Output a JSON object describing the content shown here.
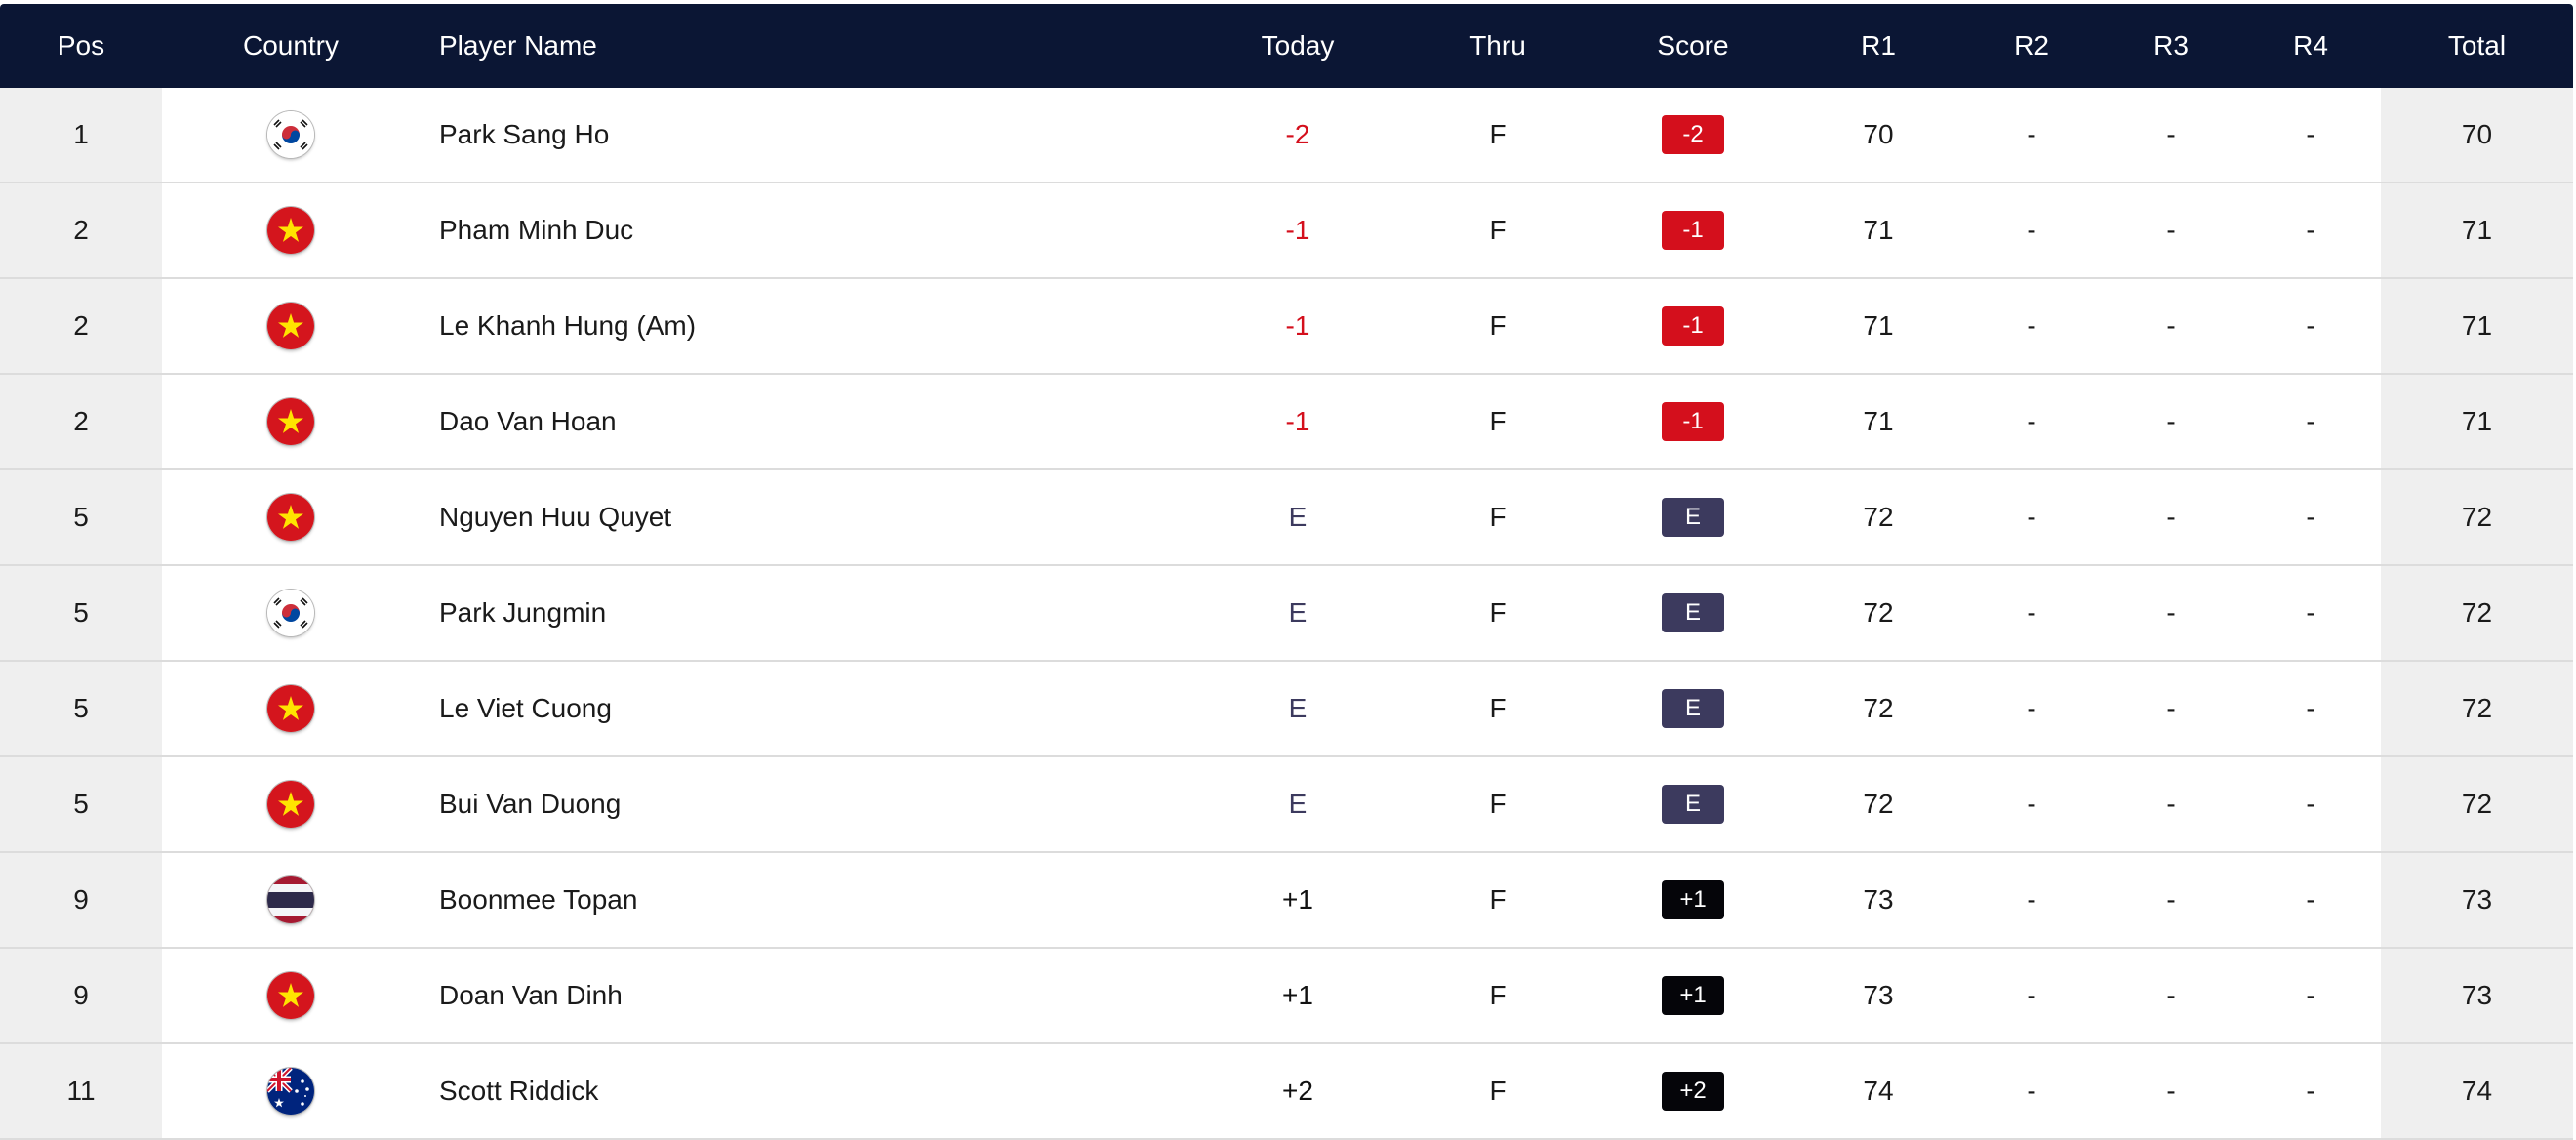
{
  "colors": {
    "header_bg": "#0b1634",
    "under_par": "#d40f1c",
    "even_par": "#3c3a5e",
    "over_par": "#050509",
    "stripe": "#efefef"
  },
  "header": {
    "pos": "Pos",
    "country": "Country",
    "name": "Player Name",
    "today": "Today",
    "thru": "Thru",
    "score": "Score",
    "r1": "R1",
    "r2": "R2",
    "r3": "R3",
    "r4": "R4",
    "total": "Total"
  },
  "rows": [
    {
      "pos": "1",
      "country": "korea-flag-icon",
      "name": "Park Sang Ho",
      "today": "-2",
      "thru": "F",
      "score": "-2",
      "r1": "70",
      "r2": "-",
      "r3": "-",
      "r4": "-",
      "total": "70"
    },
    {
      "pos": "2",
      "country": "vietnam-flag-icon",
      "name": "Pham Minh Duc",
      "today": "-1",
      "thru": "F",
      "score": "-1",
      "r1": "71",
      "r2": "-",
      "r3": "-",
      "r4": "-",
      "total": "71"
    },
    {
      "pos": "2",
      "country": "vietnam-flag-icon",
      "name": "Le Khanh Hung (Am)",
      "today": "-1",
      "thru": "F",
      "score": "-1",
      "r1": "71",
      "r2": "-",
      "r3": "-",
      "r4": "-",
      "total": "71"
    },
    {
      "pos": "2",
      "country": "vietnam-flag-icon",
      "name": "Dao Van Hoan",
      "today": "-1",
      "thru": "F",
      "score": "-1",
      "r1": "71",
      "r2": "-",
      "r3": "-",
      "r4": "-",
      "total": "71"
    },
    {
      "pos": "5",
      "country": "vietnam-flag-icon",
      "name": "Nguyen Huu Quyet",
      "today": "E",
      "thru": "F",
      "score": "E",
      "r1": "72",
      "r2": "-",
      "r3": "-",
      "r4": "-",
      "total": "72"
    },
    {
      "pos": "5",
      "country": "korea-flag-icon",
      "name": "Park Jungmin",
      "today": "E",
      "thru": "F",
      "score": "E",
      "r1": "72",
      "r2": "-",
      "r3": "-",
      "r4": "-",
      "total": "72"
    },
    {
      "pos": "5",
      "country": "vietnam-flag-icon",
      "name": "Le Viet Cuong",
      "today": "E",
      "thru": "F",
      "score": "E",
      "r1": "72",
      "r2": "-",
      "r3": "-",
      "r4": "-",
      "total": "72"
    },
    {
      "pos": "5",
      "country": "vietnam-flag-icon",
      "name": "Bui Van Duong",
      "today": "E",
      "thru": "F",
      "score": "E",
      "r1": "72",
      "r2": "-",
      "r3": "-",
      "r4": "-",
      "total": "72"
    },
    {
      "pos": "9",
      "country": "thailand-flag-icon",
      "name": "Boonmee Topan",
      "today": "+1",
      "thru": "F",
      "score": "+1",
      "r1": "73",
      "r2": "-",
      "r3": "-",
      "r4": "-",
      "total": "73"
    },
    {
      "pos": "9",
      "country": "vietnam-flag-icon",
      "name": "Doan Van Dinh",
      "today": "+1",
      "thru": "F",
      "score": "+1",
      "r1": "73",
      "r2": "-",
      "r3": "-",
      "r4": "-",
      "total": "73"
    },
    {
      "pos": "11",
      "country": "australia-flag-icon",
      "name": "Scott Riddick",
      "today": "+2",
      "thru": "F",
      "score": "+2",
      "r1": "74",
      "r2": "-",
      "r3": "-",
      "r4": "-",
      "total": "74"
    }
  ]
}
